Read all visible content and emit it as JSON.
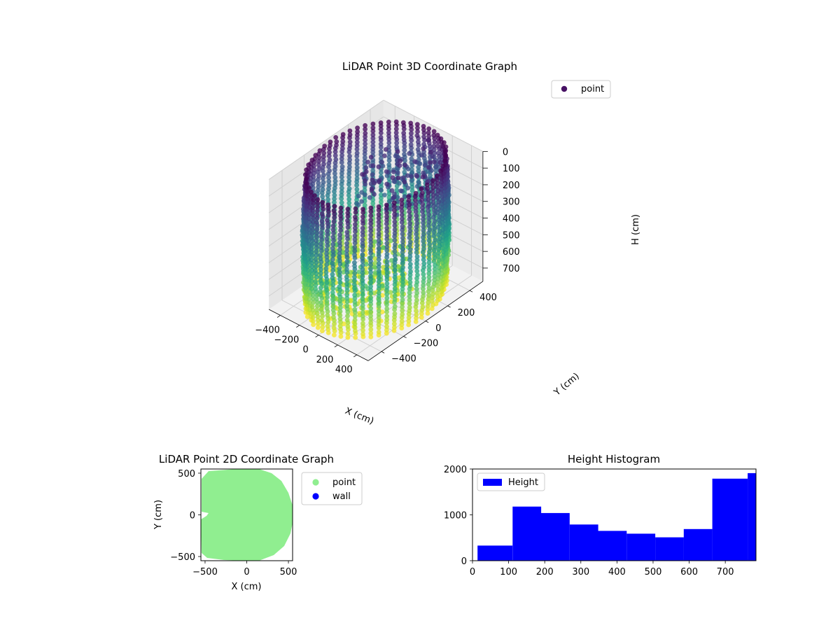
{
  "chart_data": [
    {
      "type": "scatter3d",
      "title": "LiDAR Point 3D Coordinate Graph",
      "xlabel": "X (cm)",
      "ylabel": "Y (cm)",
      "zlabel": "H (cm)",
      "xticks": [
        -400,
        -200,
        0,
        200,
        400
      ],
      "yticks": [
        -400,
        -200,
        0,
        200,
        400
      ],
      "zticks": [
        0,
        100,
        200,
        300,
        400,
        500,
        600,
        700
      ],
      "xlim": [
        -520,
        520
      ],
      "ylim": [
        -520,
        520
      ],
      "zlim": [
        0,
        780
      ],
      "z_inverted": true,
      "colormap": "viridis",
      "legend": [
        "point"
      ],
      "legend_position": "top-right",
      "grid": true,
      "series": [
        {
          "name": "point",
          "description_of_shape": "cylindrical wall of points, radius ~500 cm, height 0-780 cm, colored by height",
          "color": "#471164"
        }
      ]
    },
    {
      "type": "scatter",
      "title": "LiDAR Point 2D Coordinate Graph",
      "xlabel": "X (cm)",
      "ylabel": "Y (cm)",
      "xticks": [
        -500,
        0,
        500
      ],
      "yticks": [
        -500,
        0,
        500
      ],
      "xlim": [
        -550,
        550
      ],
      "ylim": [
        -550,
        550
      ],
      "legend_position": "outside-right",
      "series": [
        {
          "name": "point",
          "color": "#90ee90"
        },
        {
          "name": "wall",
          "color": "#0000ff"
        }
      ]
    },
    {
      "type": "bar",
      "title": "Height Histogram",
      "xlabel": "",
      "ylabel": "",
      "xticks": [
        0,
        100,
        200,
        300,
        400,
        500,
        600,
        700
      ],
      "yticks": [
        0,
        1000,
        2000
      ],
      "xlim": [
        0,
        785
      ],
      "ylim": [
        0,
        2000
      ],
      "legend": [
        "Height"
      ],
      "legend_position": "top-left",
      "bin_edges": [
        14,
        111,
        190,
        269,
        348,
        427,
        506,
        585,
        664,
        762,
        785
      ],
      "values": [
        330,
        1180,
        1040,
        790,
        650,
        590,
        510,
        690,
        1790,
        1910
      ],
      "color": "#0000ff"
    }
  ]
}
